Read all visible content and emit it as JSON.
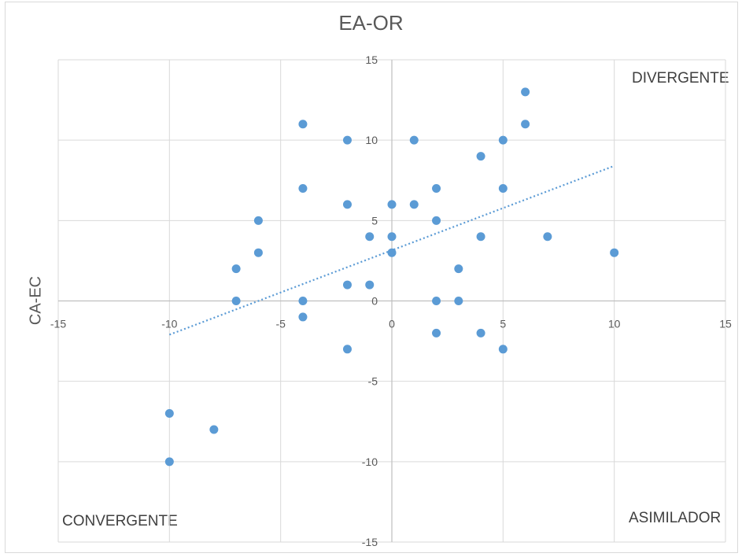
{
  "chart_data": {
    "type": "scatter",
    "title": "EA-OR",
    "ylabel": "CA-EC",
    "xlabel": "",
    "xlim": [
      -15,
      15
    ],
    "ylim": [
      -15,
      15
    ],
    "xticks": [
      -15,
      -10,
      -5,
      0,
      5,
      10,
      15
    ],
    "yticks": [
      -15,
      -10,
      -5,
      0,
      5,
      10,
      15
    ],
    "grid": true,
    "annotations": {
      "top_right": "DIVERGENTE",
      "bottom_left": "CONVERGENTE",
      "bottom_right": "ASIMILADOR"
    },
    "point_color": "#5b9bd5",
    "points": [
      {
        "x": 6,
        "y": 13
      },
      {
        "x": 6,
        "y": 11
      },
      {
        "x": -4,
        "y": 11
      },
      {
        "x": -2,
        "y": 10
      },
      {
        "x": 1,
        "y": 10
      },
      {
        "x": 5,
        "y": 10
      },
      {
        "x": 4,
        "y": 9
      },
      {
        "x": -4,
        "y": 7
      },
      {
        "x": 2,
        "y": 7
      },
      {
        "x": 5,
        "y": 7
      },
      {
        "x": -2,
        "y": 6
      },
      {
        "x": 0,
        "y": 6
      },
      {
        "x": 1,
        "y": 6
      },
      {
        "x": -6,
        "y": 5
      },
      {
        "x": 2,
        "y": 5
      },
      {
        "x": -1,
        "y": 4
      },
      {
        "x": 0,
        "y": 4
      },
      {
        "x": 4,
        "y": 4
      },
      {
        "x": 7,
        "y": 4
      },
      {
        "x": -6,
        "y": 3
      },
      {
        "x": 0,
        "y": 3
      },
      {
        "x": 10,
        "y": 3
      },
      {
        "x": -7,
        "y": 2
      },
      {
        "x": 3,
        "y": 2
      },
      {
        "x": -2,
        "y": 1
      },
      {
        "x": -1,
        "y": 1
      },
      {
        "x": -7,
        "y": 0
      },
      {
        "x": -4,
        "y": 0
      },
      {
        "x": 2,
        "y": 0
      },
      {
        "x": 3,
        "y": 0
      },
      {
        "x": -4,
        "y": -1
      },
      {
        "x": 2,
        "y": -2
      },
      {
        "x": 4,
        "y": -2
      },
      {
        "x": -2,
        "y": -3
      },
      {
        "x": 5,
        "y": -3
      },
      {
        "x": -10,
        "y": -7
      },
      {
        "x": -8,
        "y": -8
      },
      {
        "x": -10,
        "y": -10
      }
    ],
    "trendline": {
      "type": "linear",
      "style": "dotted",
      "x_start": -10,
      "x_end": 10,
      "y_start": -2.1,
      "y_end": 8.4
    }
  }
}
